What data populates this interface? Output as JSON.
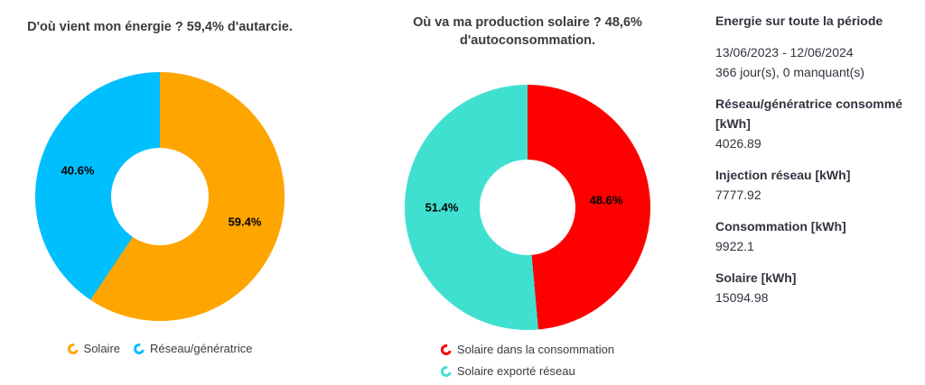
{
  "chart_data": [
    {
      "type": "pie",
      "title": "D'où vient mon énergie ? 59,4% d'autarcie.",
      "labels": [
        "Solaire",
        "Réseau/génératrice"
      ],
      "values": [
        59.4,
        40.6
      ],
      "slice_labels": [
        "59.4%",
        "40.6%"
      ],
      "colors": [
        "#FFA500",
        "#00BFFF"
      ],
      "hole": 0.39,
      "start_angle_deg": 0,
      "direction": "clockwise",
      "legend_position": "bottom"
    },
    {
      "type": "pie",
      "title": "Où va ma production solaire ? 48,6% d'autoconsommation.",
      "labels": [
        "Solaire dans la consommation",
        "Solaire exporté réseau"
      ],
      "values": [
        48.6,
        51.4
      ],
      "slice_labels": [
        "48.6%",
        "51.4%"
      ],
      "colors": [
        "#FF0000",
        "#40E0D0"
      ],
      "hole": 0.39,
      "start_angle_deg": 0,
      "direction": "clockwise",
      "legend_position": "bottom"
    }
  ],
  "stats_panel": {
    "title": "Energie sur toute la période",
    "date_range": "13/06/2023 - 12/06/2024",
    "days_info": "366 jour(s), 0 manquant(s)",
    "metrics": [
      {
        "label": "Réseau/génératrice consommé [kWh]",
        "value": "4026.89"
      },
      {
        "label": "Injection réseau [kWh]",
        "value": "7777.92"
      },
      {
        "label": "Consommation [kWh]",
        "value": "9922.1"
      },
      {
        "label": "Solaire [kWh]",
        "value": "15094.98"
      }
    ]
  },
  "colors": {
    "text": "#31333F",
    "slice_label": "#000000",
    "background": "#FFFFFF"
  }
}
